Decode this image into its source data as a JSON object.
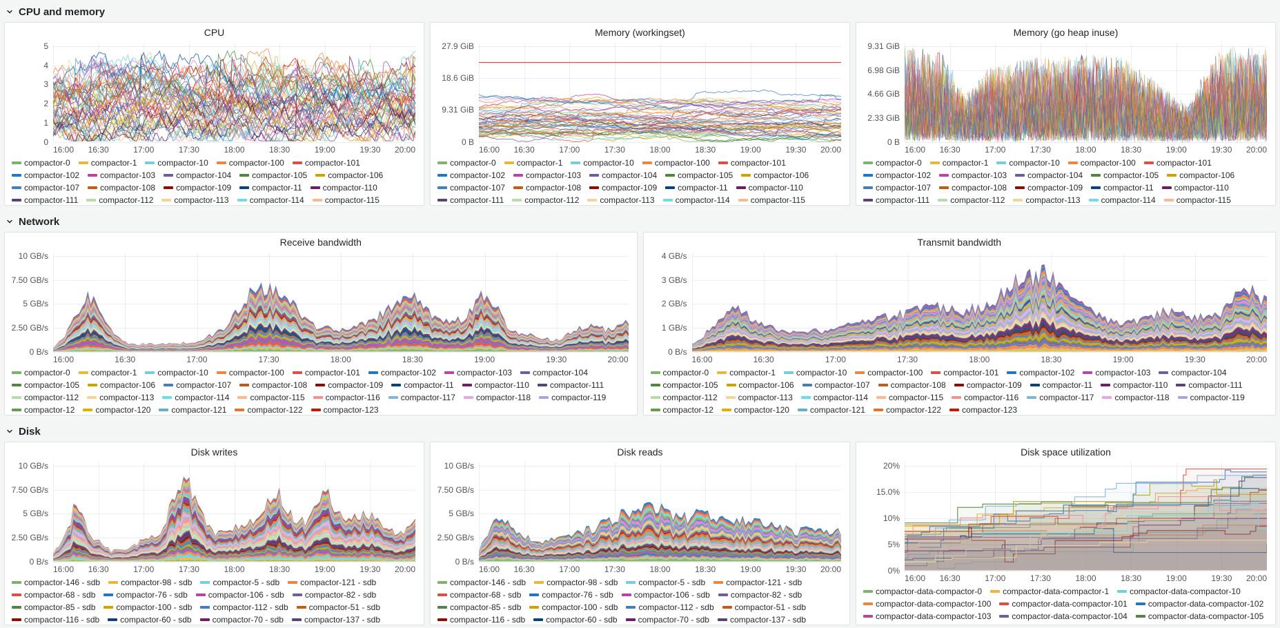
{
  "palette": [
    "#7EB26D",
    "#EAB839",
    "#6ED0E0",
    "#EF843C",
    "#E24D42",
    "#1F78C1",
    "#BA43A9",
    "#705DA0",
    "#508642",
    "#CCA300",
    "#447EBC",
    "#C15C17",
    "#890F02",
    "#0A437C",
    "#6D1F62",
    "#584477",
    "#B7DBAB",
    "#F4D598",
    "#70DBED",
    "#F9BA8F",
    "#F29191",
    "#82B5D8",
    "#E5A8E2",
    "#AEA2E0",
    "#629E51",
    "#E5AC0E",
    "#64B0C8",
    "#E0752D",
    "#BF1B00",
    "#0A50A1",
    "#962D82",
    "#614D93",
    "#9AC48A",
    "#F2C96D",
    "#65C5DB",
    "#F9934E",
    "#EA6460",
    "#5195CE",
    "#D683CE",
    "#806EB7"
  ],
  "sections": [
    {
      "title": "CPU and memory"
    },
    {
      "title": "Network"
    },
    {
      "title": "Disk"
    }
  ],
  "x_ticks": [
    "16:00",
    "16:30",
    "17:00",
    "17:30",
    "18:00",
    "18:30",
    "19:00",
    "19:30",
    "20:00"
  ],
  "legends": {
    "cpu_mem": [
      "compactor-0",
      "compactor-1",
      "compactor-10",
      "compactor-100",
      "compactor-101",
      "compactor-102",
      "compactor-103",
      "compactor-104",
      "compactor-105",
      "compactor-106",
      "compactor-107",
      "compactor-108",
      "compactor-109",
      "compactor-11",
      "compactor-110",
      "compactor-111",
      "compactor-112",
      "compactor-113",
      "compactor-114",
      "compactor-115"
    ],
    "network": [
      "compactor-0",
      "compactor-1",
      "compactor-10",
      "compactor-100",
      "compactor-101",
      "compactor-102",
      "compactor-103",
      "compactor-104",
      "compactor-105",
      "compactor-106",
      "compactor-107",
      "compactor-108",
      "compactor-109",
      "compactor-11",
      "compactor-110",
      "compactor-111",
      "compactor-112",
      "compactor-113",
      "compactor-114",
      "compactor-115",
      "compactor-116",
      "compactor-117",
      "compactor-118",
      "compactor-119",
      "compactor-12",
      "compactor-120",
      "compactor-121",
      "compactor-122",
      "compactor-123"
    ],
    "disk_rw": [
      "compactor-146 - sdb",
      "compactor-98 - sdb",
      "compactor-5 - sdb",
      "compactor-121 - sdb",
      "compactor-68 - sdb",
      "compactor-76 - sdb",
      "compactor-106 - sdb",
      "compactor-82 - sdb",
      "compactor-85 - sdb",
      "compactor-100 - sdb",
      "compactor-112 - sdb",
      "compactor-51 - sdb",
      "compactor-116 - sdb",
      "compactor-60 - sdb",
      "compactor-70 - sdb",
      "compactor-137 - sdb"
    ],
    "disk_space": [
      "compactor-data-compactor-0",
      "compactor-data-compactor-1",
      "compactor-data-compactor-10",
      "compactor-data-compactor-100",
      "compactor-data-compactor-101",
      "compactor-data-compactor-102",
      "compactor-data-compactor-103",
      "compactor-data-compactor-104",
      "compactor-data-compactor-105"
    ]
  },
  "chart_data": [
    {
      "title": "CPU",
      "section": "CPU and memory",
      "type": "line",
      "mode": "lines",
      "legend_key": "cpu_mem",
      "seed": 11,
      "n_series": 55,
      "ylim": [
        0,
        5
      ],
      "y_ticks": {
        "labels": [
          "0",
          "1",
          "2",
          "3",
          "4",
          "5"
        ],
        "values": [
          0,
          1,
          2,
          3,
          4,
          5
        ]
      },
      "x_ticks": [
        "16:00",
        "16:30",
        "17:00",
        "17:30",
        "18:00",
        "18:30",
        "19:00",
        "19:30",
        "20:00"
      ],
      "band": [
        0.5,
        3.1
      ],
      "step": 0.45,
      "spike": 4.4
    },
    {
      "title": "Memory (workingset)",
      "section": "CPU and memory",
      "type": "line",
      "mode": "walk",
      "legend_key": "cpu_mem",
      "seed": 23,
      "n_series": 50,
      "ylim": [
        0,
        27.9
      ],
      "y_ticks": {
        "labels": [
          "0 B",
          "9.31 GiB",
          "18.6 GiB",
          "27.9 GiB"
        ],
        "values": [
          0,
          9.31,
          18.6,
          27.9
        ]
      },
      "x_ticks": [
        "16:00",
        "16:30",
        "17:00",
        "17:30",
        "18:00",
        "18:30",
        "19:00",
        "19:30",
        "20:00"
      ],
      "band": [
        1.2,
        12.2
      ],
      "step": 0.35,
      "jump_p": 0.02,
      "jump": 3.2,
      "clamp": 0.62,
      "limit_line": {
        "value": 23.3,
        "color": "#E24D42"
      }
    },
    {
      "title": "Memory (go heap inuse)",
      "section": "CPU and memory",
      "type": "line",
      "mode": "spiky",
      "legend_key": "cpu_mem",
      "seed": 37,
      "n_series": 50,
      "ylim": [
        0,
        9.31
      ],
      "y_ticks": {
        "labels": [
          "0 B",
          "2.33 GiB",
          "4.66 GiB",
          "6.98 GiB",
          "9.31 GiB"
        ],
        "values": [
          0,
          2.33,
          4.66,
          6.98,
          9.31
        ]
      },
      "x_ticks": [
        "16:00",
        "16:30",
        "17:00",
        "17:30",
        "18:00",
        "18:30",
        "19:00",
        "19:30",
        "20:00"
      ],
      "amp": {
        "x": [
          0,
          0.1,
          0.17,
          0.24,
          0.3,
          0.45,
          0.6,
          0.72,
          0.78,
          0.85,
          0.9,
          1
        ],
        "a": [
          1,
          0.95,
          0.5,
          0.8,
          0.85,
          0.92,
          0.9,
          0.55,
          0.38,
          0.9,
          1,
          0.97
        ]
      }
    },
    {
      "title": "Receive bandwidth",
      "section": "Network",
      "type": "area",
      "mode": "stacked",
      "legend_key": "network",
      "seed": 41,
      "n_series": 48,
      "ylim": [
        0,
        10
      ],
      "y_ticks": {
        "labels": [
          "0 B/s",
          "2.50 GB/s",
          "5 GB/s",
          "7.50 GB/s",
          "10 GB/s"
        ],
        "values": [
          0,
          2.5,
          5,
          7.5,
          10
        ]
      },
      "x_ticks": [
        "16:00",
        "16:30",
        "17:00",
        "17:30",
        "18:00",
        "18:30",
        "19:00",
        "19:30",
        "20:00"
      ],
      "envelope": {
        "x": [
          0,
          0.02,
          0.06,
          0.09,
          0.13,
          0.2,
          0.25,
          0.3,
          0.355,
          0.4,
          0.45,
          0.5,
          0.55,
          0.625,
          0.66,
          0.71,
          0.755,
          0.79,
          0.84,
          0.875,
          0.93,
          0.97,
          1
        ],
        "y": [
          0.4,
          1.5,
          6.2,
          3.0,
          0.8,
          0.8,
          1.0,
          2.5,
          7.0,
          5.8,
          2.8,
          2.3,
          3.2,
          6.2,
          3.6,
          3.2,
          6.4,
          2.4,
          1.5,
          1.2,
          2.9,
          2.2,
          3.1
        ]
      }
    },
    {
      "title": "Transmit bandwidth",
      "section": "Network",
      "type": "area",
      "mode": "stacked",
      "legend_key": "network",
      "seed": 53,
      "n_series": 48,
      "ylim": [
        0,
        4
      ],
      "y_ticks": {
        "labels": [
          "0 B/s",
          "1 GB/s",
          "2 GB/s",
          "3 GB/s",
          "4 GB/s"
        ],
        "values": [
          0,
          1,
          2,
          3,
          4
        ]
      },
      "x_ticks": [
        "16:00",
        "16:30",
        "17:00",
        "17:30",
        "18:00",
        "18:30",
        "19:00",
        "19:30",
        "20:00"
      ],
      "envelope": {
        "x": [
          0,
          0.04,
          0.075,
          0.12,
          0.19,
          0.25,
          0.3,
          0.355,
          0.42,
          0.47,
          0.52,
          0.565,
          0.61,
          0.64,
          0.7,
          0.75,
          0.8,
          0.845,
          0.875,
          0.92,
          0.96,
          1
        ],
        "y": [
          0.3,
          1.1,
          1.9,
          1.1,
          0.8,
          0.9,
          1.3,
          1.5,
          1.9,
          1.6,
          2.1,
          2.9,
          3.3,
          2.8,
          1.6,
          1.1,
          1.5,
          1.8,
          1.4,
          1.6,
          2.7,
          2.1
        ]
      }
    },
    {
      "title": "Disk writes",
      "section": "Disk",
      "type": "area",
      "mode": "stacked",
      "legend_key": "disk_rw",
      "seed": 61,
      "n_series": 46,
      "ylim": [
        0,
        10
      ],
      "y_ticks": {
        "labels": [
          "0 B/s",
          "2.50 GB/s",
          "5 GB/s",
          "7.50 GB/s",
          "10 GB/s"
        ],
        "values": [
          0,
          2.5,
          5,
          7.5,
          10
        ]
      },
      "x_ticks": [
        "16:00",
        "16:30",
        "17:00",
        "17:30",
        "18:00",
        "18:30",
        "19:00",
        "19:30",
        "20:00"
      ],
      "envelope": {
        "x": [
          0,
          0.03,
          0.0625,
          0.1,
          0.16,
          0.21,
          0.25,
          0.3,
          0.36,
          0.395,
          0.44,
          0.5,
          0.56,
          0.625,
          0.67,
          0.71,
          0.755,
          0.8,
          0.845,
          0.875,
          0.92,
          0.96,
          1
        ],
        "y": [
          0.8,
          2.5,
          6.0,
          2.8,
          1.1,
          1.4,
          2.2,
          3.2,
          9.2,
          6.5,
          3.0,
          3.4,
          4.5,
          7.2,
          4.2,
          4.4,
          7.6,
          4.0,
          4.8,
          5.0,
          3.2,
          3.0,
          4.4
        ]
      }
    },
    {
      "title": "Disk reads",
      "section": "Disk",
      "type": "area",
      "mode": "stacked",
      "legend_key": "disk_rw",
      "seed": 67,
      "n_series": 46,
      "ylim": [
        0,
        10
      ],
      "y_ticks": {
        "labels": [
          "0 B/s",
          "2.50 GB/s",
          "5 GB/s",
          "7.50 GB/s",
          "10 GB/s"
        ],
        "values": [
          0,
          2.5,
          5,
          7.5,
          10
        ]
      },
      "x_ticks": [
        "16:00",
        "16:30",
        "17:00",
        "17:30",
        "18:00",
        "18:30",
        "19:00",
        "19:30",
        "20:00"
      ],
      "envelope": {
        "x": [
          0,
          0.04,
          0.0625,
          0.11,
          0.17,
          0.25,
          0.31,
          0.375,
          0.44,
          0.5,
          0.55,
          0.625,
          0.69,
          0.75,
          0.81,
          0.875,
          0.93,
          1
        ],
        "y": [
          1.2,
          3.8,
          4.4,
          3.0,
          2.0,
          2.8,
          3.4,
          4.6,
          5.4,
          5.6,
          4.4,
          5.0,
          3.9,
          4.4,
          3.7,
          3.1,
          3.4,
          3.0
        ]
      }
    },
    {
      "title": "Disk space utilization",
      "section": "Disk",
      "type": "line",
      "mode": "steps",
      "legend_key": "disk_space",
      "seed": 71,
      "n_series": 22,
      "ylim": [
        0,
        20
      ],
      "y_ticks": {
        "labels": [
          "0%",
          "5%",
          "10%",
          "15.0%",
          "20%"
        ],
        "values": [
          0,
          5,
          10,
          15,
          20
        ]
      },
      "x_ticks": [
        "16:00",
        "16:30",
        "17:00",
        "17:30",
        "18:00",
        "18:30",
        "19:00",
        "19:30",
        "20:00"
      ]
    }
  ]
}
